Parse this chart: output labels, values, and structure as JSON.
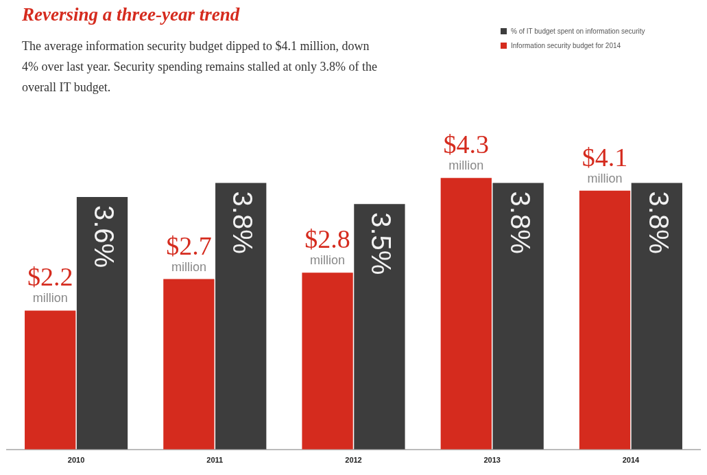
{
  "chart_data": {
    "type": "bar",
    "title": "Reversing a three-year trend",
    "subtitle": "The average information security budget dipped to $4.1 million, down 4% over last year. Security spending remains stalled at only 3.8% of the overall IT budget.",
    "categories": [
      "2010",
      "2011",
      "2012",
      "2013",
      "2014"
    ],
    "series": [
      {
        "name": "Information security budget for 2014",
        "color": "#d52b1e",
        "values": [
          2.2,
          2.7,
          2.8,
          4.3,
          4.1
        ],
        "value_labels": [
          "$2.2 million",
          "$2.7 million",
          "$2.8 million",
          "$4.3 million",
          "$4.1 million"
        ]
      },
      {
        "name": "% of IT budget spent on information security",
        "color": "#3d3d3d",
        "axis": "y2",
        "values": [
          3.6,
          3.8,
          3.5,
          3.8,
          3.8
        ],
        "value_labels": [
          "3.6%",
          "3.8%",
          "3.5%",
          "3.8%",
          "3.8%"
        ]
      }
    ],
    "legend": "top right",
    "grid": false,
    "tick_labels": "x"
  }
}
